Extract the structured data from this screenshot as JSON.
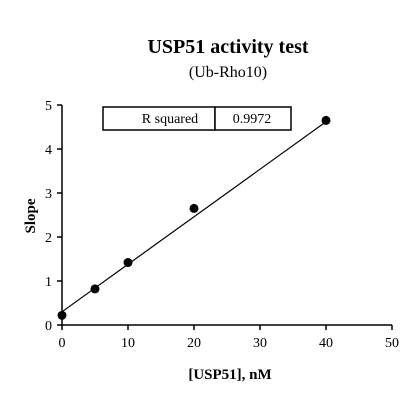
{
  "chart_data": {
    "type": "scatter",
    "title": "USP51 activity test",
    "subtitle": "(Ub-Rho10)",
    "xlabel": "[USP51], nM",
    "ylabel": "Slope",
    "xlim": [
      0,
      50
    ],
    "ylim": [
      0,
      5
    ],
    "xticks": [
      0,
      10,
      20,
      30,
      40,
      50
    ],
    "yticks": [
      0,
      1,
      2,
      3,
      4,
      5
    ],
    "grid": false,
    "points": [
      {
        "x": 0,
        "y": 0.22
      },
      {
        "x": 5,
        "y": 0.82
      },
      {
        "x": 10,
        "y": 1.42
      },
      {
        "x": 20,
        "y": 2.65
      },
      {
        "x": 40,
        "y": 4.65
      }
    ],
    "fit_line": {
      "x": [
        0,
        40
      ],
      "y": [
        0.3,
        4.62
      ]
    },
    "annotation": {
      "label": "R squared",
      "value": "0.9972"
    }
  }
}
